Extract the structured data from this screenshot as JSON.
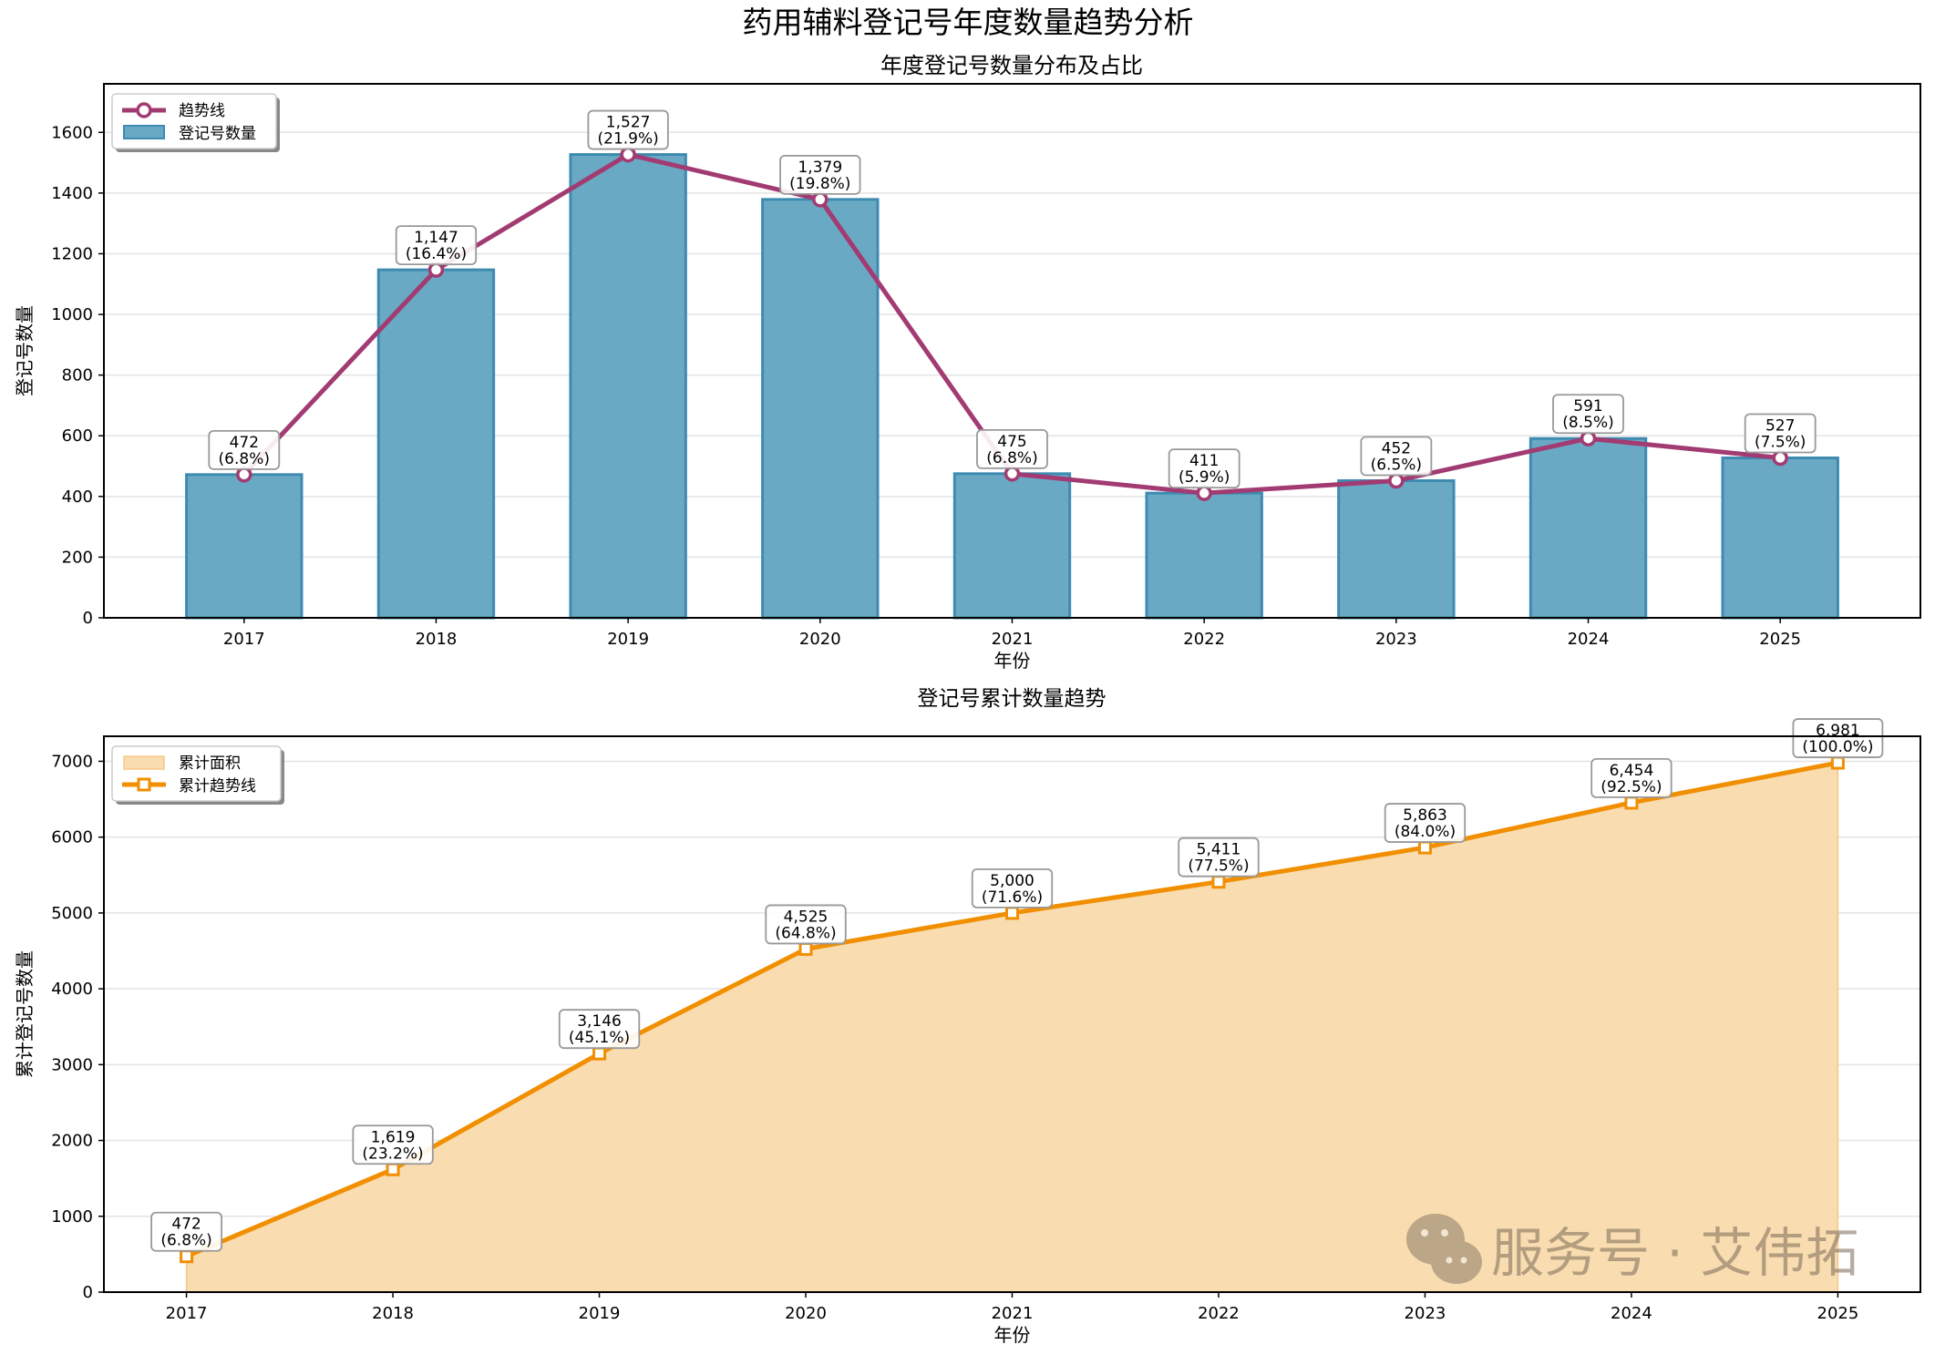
{
  "suptitle": "药用辅料登记号年度数量趋势分析",
  "watermark": "服务号 · 艾伟拓",
  "colors": {
    "bar": "#6aa9c4",
    "bar_edge": "#3d8bb0",
    "trend": "#a23b72",
    "cum": "#f18f01",
    "cum_fill": "#f9dcb0"
  },
  "chart_data": [
    {
      "type": "bar",
      "title": "年度登记号数量分布及占比",
      "xlabel": "年份",
      "ylabel": "登记号数量",
      "categories": [
        "2017",
        "2018",
        "2019",
        "2020",
        "2021",
        "2022",
        "2023",
        "2024",
        "2025"
      ],
      "values": [
        472,
        1147,
        1527,
        1379,
        475,
        411,
        452,
        591,
        527
      ],
      "data_labels": [
        "472\n(6.8%)",
        "1,147\n(16.4%)",
        "1,527\n(21.9%)",
        "1,379\n(19.8%)",
        "475\n(6.8%)",
        "411\n(5.9%)",
        "452\n(6.5%)",
        "591\n(8.5%)",
        "527\n(7.5%)"
      ],
      "yticks": [
        0,
        200,
        400,
        600,
        800,
        1000,
        1200,
        1400,
        1600
      ],
      "ylim": [
        0,
        1760
      ],
      "grid": true,
      "legend": {
        "placement": "top-left",
        "entries": [
          "趋势线",
          "登记号数量"
        ]
      }
    },
    {
      "type": "area",
      "title": "登记号累计数量趋势",
      "xlabel": "年份",
      "ylabel": "累计登记号数量",
      "categories": [
        "2017",
        "2018",
        "2019",
        "2020",
        "2021",
        "2022",
        "2023",
        "2024",
        "2025"
      ],
      "values": [
        472,
        1619,
        3146,
        4525,
        5000,
        5411,
        5863,
        6454,
        6981
      ],
      "data_labels": [
        "472\n(6.8%)",
        "1,619\n(23.2%)",
        "3,146\n(45.1%)",
        "4,525\n(64.8%)",
        "5,000\n(71.6%)",
        "5,411\n(77.5%)",
        "5,863\n(84.0%)",
        "6,454\n(92.5%)",
        "6,981\n(100.0%)"
      ],
      "yticks": [
        0,
        1000,
        2000,
        3000,
        4000,
        5000,
        6000,
        7000
      ],
      "ylim": [
        0,
        7330
      ],
      "grid": true,
      "legend": {
        "placement": "top-left",
        "entries": [
          "累计面积",
          "累计趋势线"
        ]
      }
    }
  ]
}
